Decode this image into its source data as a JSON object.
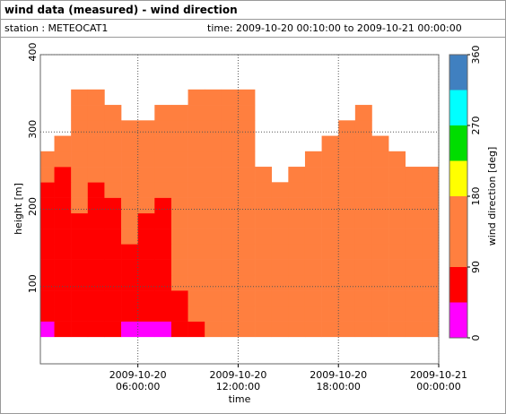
{
  "header": {
    "title": "wind data (measured) - wind direction",
    "station": "station : METEOCAT1",
    "time": "time: 2009-10-20 00:10:00 to 2009-10-21 00:00:00"
  },
  "chart_data": {
    "type": "heatmap",
    "xlabel": "time",
    "ylabel": "height [m]",
    "xlim": [
      0.1667,
      24
    ],
    "ylim": [
      0,
      400
    ],
    "xticks": [
      {
        "value": 6,
        "label": "2009-10-20 06:00:00"
      },
      {
        "value": 12,
        "label": "2009-10-20 12:00:00"
      },
      {
        "value": 18,
        "label": "2009-10-20 18:00:00"
      },
      {
        "value": 24,
        "label": "2009-10-21 00:00:00"
      }
    ],
    "yticks": [
      100,
      200,
      300,
      400
    ],
    "grid": true,
    "x_bins": [
      0.1667,
      1,
      2,
      3,
      4,
      5,
      6,
      7,
      8,
      9,
      10,
      11,
      12,
      13,
      14,
      15,
      16,
      17,
      18,
      19,
      20,
      21,
      22,
      23,
      24
    ],
    "y_bins": [
      35,
      55,
      75,
      95,
      115,
      135,
      155,
      175,
      195,
      215,
      235,
      255,
      275,
      295,
      315,
      335,
      355
    ],
    "values": [
      [
        22,
        67,
        67,
        67,
        67,
        22,
        22,
        22,
        67,
        67,
        112,
        112,
        157,
        157,
        157,
        157,
        157,
        157,
        157,
        157,
        157,
        112,
        112,
        112
      ],
      [
        67,
        67,
        67,
        67,
        67,
        67,
        67,
        67,
        67,
        112,
        112,
        112,
        157,
        157,
        157,
        157,
        157,
        157,
        157,
        157,
        157,
        112,
        112,
        112
      ],
      [
        67,
        67,
        67,
        67,
        67,
        67,
        67,
        67,
        67,
        112,
        112,
        112,
        157,
        157,
        157,
        157,
        157,
        157,
        157,
        157,
        112,
        112,
        112,
        112
      ],
      [
        67,
        67,
        67,
        67,
        67,
        67,
        67,
        67,
        112,
        112,
        112,
        112,
        157,
        157,
        157,
        157,
        157,
        157,
        157,
        157,
        112,
        112,
        112,
        112
      ],
      [
        67,
        67,
        67,
        67,
        67,
        67,
        67,
        67,
        112,
        112,
        112,
        112,
        157,
        157,
        157,
        157,
        157,
        157,
        157,
        157,
        112,
        112,
        112,
        112
      ],
      [
        67,
        67,
        67,
        67,
        67,
        67,
        67,
        67,
        112,
        112,
        112,
        112,
        157,
        157,
        157,
        157,
        157,
        157,
        157,
        157,
        112,
        112,
        112,
        112
      ],
      [
        67,
        67,
        67,
        67,
        67,
        112,
        67,
        67,
        112,
        112,
        112,
        112,
        157,
        157,
        157,
        157,
        157,
        157,
        157,
        157,
        112,
        112,
        112,
        112
      ],
      [
        67,
        67,
        67,
        67,
        67,
        112,
        67,
        67,
        112,
        112,
        112,
        112,
        157,
        157,
        157,
        157,
        157,
        157,
        157,
        157,
        112,
        112,
        112,
        112
      ],
      [
        67,
        67,
        112,
        67,
        67,
        112,
        112,
        67,
        112,
        112,
        112,
        112,
        157,
        157,
        157,
        157,
        157,
        157,
        157,
        157,
        112,
        112,
        112,
        112
      ],
      [
        67,
        67,
        112,
        67,
        112,
        112,
        112,
        112,
        112,
        112,
        112,
        112,
        157,
        157,
        157,
        157,
        157,
        157,
        157,
        157,
        112,
        112,
        112,
        112
      ],
      [
        112,
        67,
        112,
        112,
        112,
        112,
        112,
        112,
        112,
        112,
        112,
        112,
        157,
        157,
        null,
        157,
        157,
        157,
        157,
        112,
        112,
        112,
        112,
        112
      ],
      [
        112,
        112,
        112,
        112,
        112,
        112,
        112,
        112,
        112,
        112,
        112,
        112,
        157,
        null,
        null,
        null,
        157,
        157,
        157,
        112,
        112,
        112,
        null,
        null
      ],
      [
        null,
        112,
        112,
        112,
        112,
        112,
        112,
        112,
        112,
        112,
        112,
        112,
        157,
        null,
        null,
        null,
        null,
        157,
        157,
        112,
        112,
        null,
        null,
        null
      ],
      [
        null,
        null,
        112,
        112,
        112,
        112,
        112,
        112,
        112,
        112,
        112,
        112,
        157,
        null,
        null,
        null,
        null,
        null,
        157,
        112,
        null,
        null,
        null,
        null
      ],
      [
        null,
        null,
        112,
        112,
        112,
        null,
        null,
        112,
        112,
        112,
        157,
        157,
        157,
        null,
        null,
        null,
        null,
        null,
        null,
        112,
        null,
        null,
        null,
        null
      ],
      [
        null,
        null,
        112,
        112,
        null,
        null,
        null,
        null,
        null,
        157,
        157,
        157,
        157,
        null,
        null,
        null,
        null,
        null,
        null,
        null,
        null,
        null,
        null,
        null
      ]
    ],
    "colorbar": {
      "label": "wind direction [deg]",
      "bins": [
        0,
        45,
        90,
        135,
        180,
        225,
        270,
        315,
        360
      ],
      "colors": [
        "#ff00ff",
        "#ff0000",
        "#ff7f3f",
        "#ff7f3f",
        "#ffff00",
        "#00dd00",
        "#00ffff",
        "#4080c0",
        "#0000ff"
      ],
      "ticks": [
        0,
        90,
        180,
        270,
        360
      ]
    }
  }
}
